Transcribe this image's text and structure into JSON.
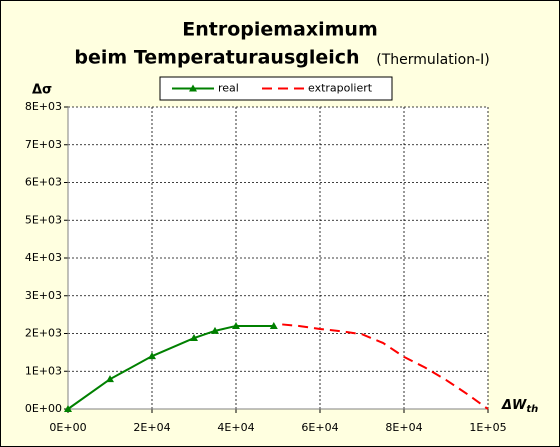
{
  "chart_data": {
    "type": "line",
    "title": "Entropiemaximum",
    "title_line2": "beim Temperaturausgleich",
    "subtitle": "(Thermulation-I)",
    "ylabel": "Δσ",
    "xlabel": "ΔW",
    "xlabel_subscript": "th",
    "xlim": [
      0,
      100000
    ],
    "ylim": [
      0,
      8000
    ],
    "xticks": [
      {
        "value": 0,
        "label": "0E+00"
      },
      {
        "value": 20000,
        "label": "2E+04"
      },
      {
        "value": 40000,
        "label": "4E+04"
      },
      {
        "value": 60000,
        "label": "6E+04"
      },
      {
        "value": 80000,
        "label": "8E+04"
      },
      {
        "value": 100000,
        "label": "1E+05"
      }
    ],
    "yticks": [
      {
        "value": 0,
        "label": "0E+00"
      },
      {
        "value": 1000,
        "label": "1E+03"
      },
      {
        "value": 2000,
        "label": "2E+03"
      },
      {
        "value": 3000,
        "label": "3E+03"
      },
      {
        "value": 4000,
        "label": "4E+03"
      },
      {
        "value": 5000,
        "label": "5E+03"
      },
      {
        "value": 6000,
        "label": "6E+03"
      },
      {
        "value": 7000,
        "label": "7E+03"
      },
      {
        "value": 8000,
        "label": "8E+03"
      }
    ],
    "grid": true,
    "legend": "top",
    "series": [
      {
        "name": "real",
        "color": "#008000",
        "dashed": false,
        "marker": "triangle",
        "x": [
          0,
          10000,
          20000,
          30000,
          35000,
          40000,
          49000
        ],
        "values": [
          0,
          790,
          1400,
          1880,
          2070,
          2200,
          2200
        ]
      },
      {
        "name": "extrapoliert",
        "color": "#ff0000",
        "dashed": true,
        "marker": "none",
        "x": [
          51000,
          55000,
          60000,
          65000,
          70000,
          75000,
          80000,
          85000,
          90000,
          95000,
          100000
        ],
        "values": [
          2240,
          2200,
          2120,
          2060,
          1980,
          1750,
          1380,
          1100,
          770,
          400,
          0
        ]
      }
    ]
  }
}
